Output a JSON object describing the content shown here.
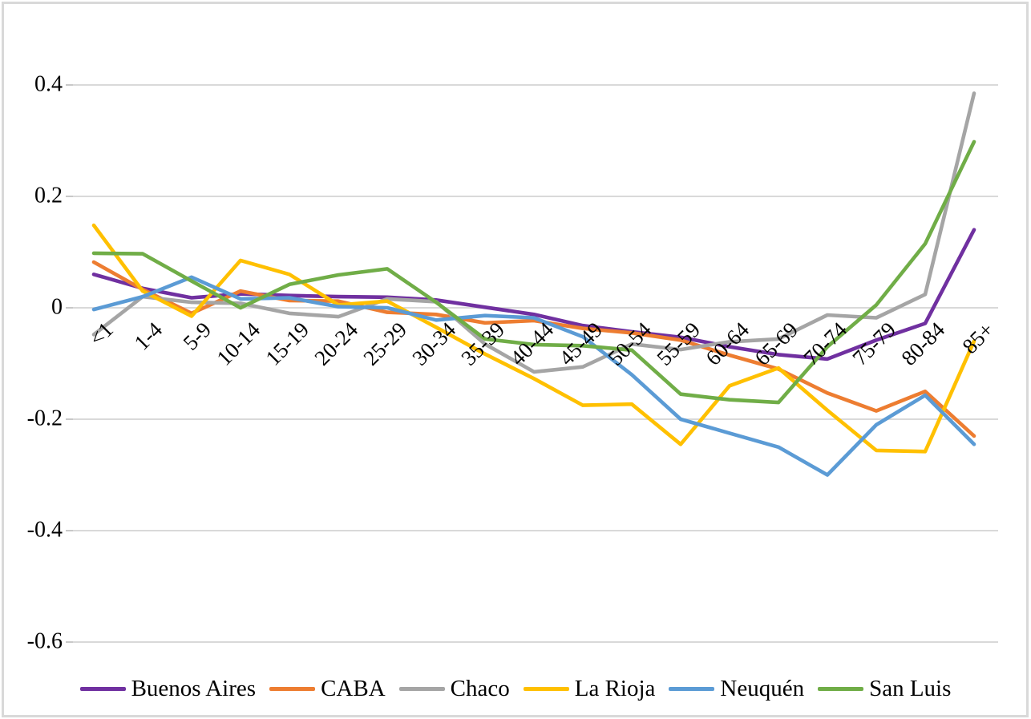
{
  "chart_data": {
    "type": "line",
    "title": "",
    "categories": [
      "<1",
      "1-4",
      "5-9",
      "10-14",
      "15-19",
      "20-24",
      "25-29",
      "30-34",
      "35-39",
      "40-44",
      "45-49",
      "50-54",
      "55-59",
      "60-64",
      "65-69",
      "70-74",
      "75-79",
      "80-84",
      "85+"
    ],
    "series": [
      {
        "name": "Buenos Aires",
        "color": "#7030A0",
        "values": [
          0.06,
          0.035,
          0.018,
          0.025,
          0.022,
          0.02,
          0.019,
          0.014,
          0.001,
          -0.012,
          -0.032,
          -0.043,
          -0.053,
          -0.07,
          -0.084,
          -0.092,
          -0.058,
          -0.028,
          0.14
        ]
      },
      {
        "name": "CABA",
        "color": "#ED7D31",
        "values": [
          0.082,
          0.033,
          -0.01,
          0.03,
          0.013,
          0.012,
          -0.008,
          -0.012,
          -0.027,
          -0.023,
          -0.037,
          -0.045,
          -0.058,
          -0.085,
          -0.11,
          -0.153,
          -0.185,
          -0.15,
          -0.23
        ]
      },
      {
        "name": "Chaco",
        "color": "#A5A5A5",
        "values": [
          -0.048,
          0.02,
          0.01,
          0.008,
          -0.01,
          -0.016,
          0.016,
          0.011,
          -0.065,
          -0.115,
          -0.106,
          -0.065,
          -0.075,
          -0.061,
          -0.056,
          -0.013,
          -0.018,
          0.024,
          0.385
        ]
      },
      {
        "name": "La Rioja",
        "color": "#FFC000",
        "values": [
          0.148,
          0.03,
          -0.015,
          0.085,
          0.06,
          0.005,
          0.012,
          -0.035,
          -0.083,
          -0.127,
          -0.175,
          -0.173,
          -0.245,
          -0.14,
          -0.108,
          -0.184,
          -0.256,
          -0.258,
          -0.06
        ]
      },
      {
        "name": "Neuquén",
        "color": "#5B9BD5",
        "values": [
          -0.003,
          0.02,
          0.055,
          0.016,
          0.018,
          0.002,
          0.0,
          -0.022,
          -0.014,
          -0.018,
          -0.052,
          -0.12,
          -0.2,
          -0.225,
          -0.25,
          -0.3,
          -0.21,
          -0.157,
          -0.245
        ]
      },
      {
        "name": "San Luis",
        "color": "#70AD47",
        "values": [
          0.098,
          0.097,
          0.048,
          0.0,
          0.042,
          0.059,
          0.07,
          0.01,
          -0.056,
          -0.066,
          -0.068,
          -0.076,
          -0.155,
          -0.165,
          -0.17,
          -0.07,
          0.005,
          0.115,
          0.298
        ]
      }
    ],
    "y_axis": {
      "min": -0.6,
      "max": 0.4,
      "ticks": [
        0.4,
        0.2,
        0,
        -0.2,
        -0.4,
        -0.6
      ],
      "tick_labels": [
        "0.4",
        "0.2",
        "0",
        "-0.2",
        "-0.4",
        "-0.6"
      ]
    },
    "x_axis": {
      "label_rotation_deg": 45
    },
    "legend": {
      "position": "bottom"
    },
    "grid": "horizontal",
    "colors": {
      "gridline": "#D9D9D9",
      "tick": "#C8C8C8",
      "text": "#000000",
      "background": "#FFFFFF",
      "frame_border": "#D9D9D9"
    }
  }
}
